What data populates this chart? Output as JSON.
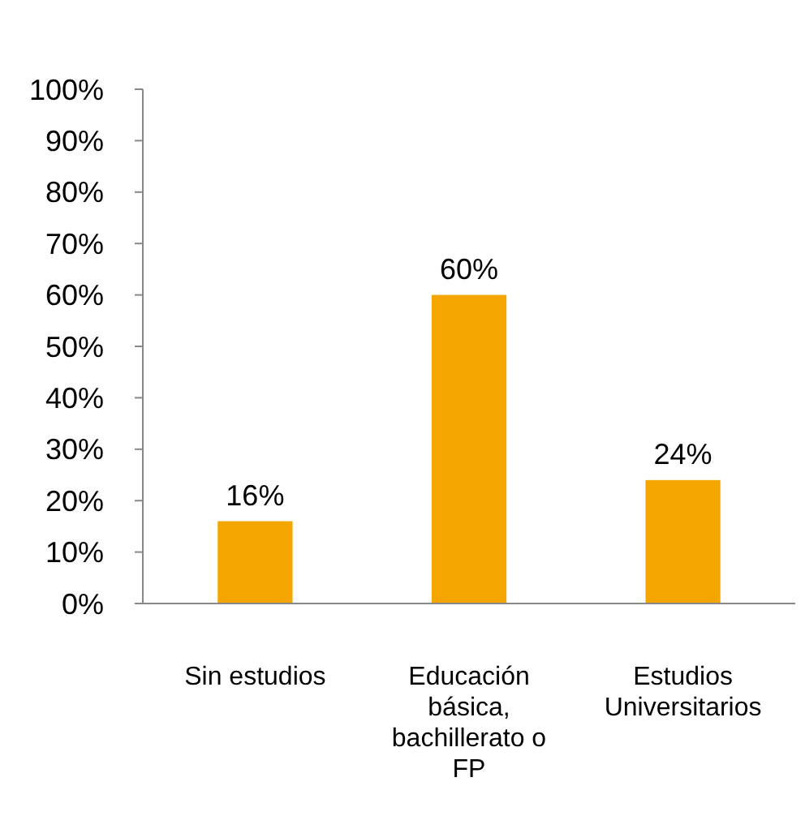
{
  "chart_data": {
    "type": "bar",
    "categories": [
      "Sin estudios",
      "Educación básica, bachillerato o FP",
      "Estudios Universitarios"
    ],
    "values": [
      16,
      60,
      24
    ],
    "color": "#f5a500",
    "value_labels": [
      "16%",
      "60%",
      "24%"
    ],
    "ylim": [
      0,
      100
    ],
    "yticks": [
      {
        "value": 0,
        "label": "0%"
      },
      {
        "value": 10,
        "label": "10%"
      },
      {
        "value": 20,
        "label": "20%"
      },
      {
        "value": 30,
        "label": "30%"
      },
      {
        "value": 40,
        "label": "40%"
      },
      {
        "value": 50,
        "label": "50%"
      },
      {
        "value": 60,
        "label": "60%"
      },
      {
        "value": 70,
        "label": "70%"
      },
      {
        "value": 80,
        "label": "80%"
      },
      {
        "value": 90,
        "label": "90%"
      },
      {
        "value": 100,
        "label": "100%"
      }
    ],
    "grid": false
  }
}
